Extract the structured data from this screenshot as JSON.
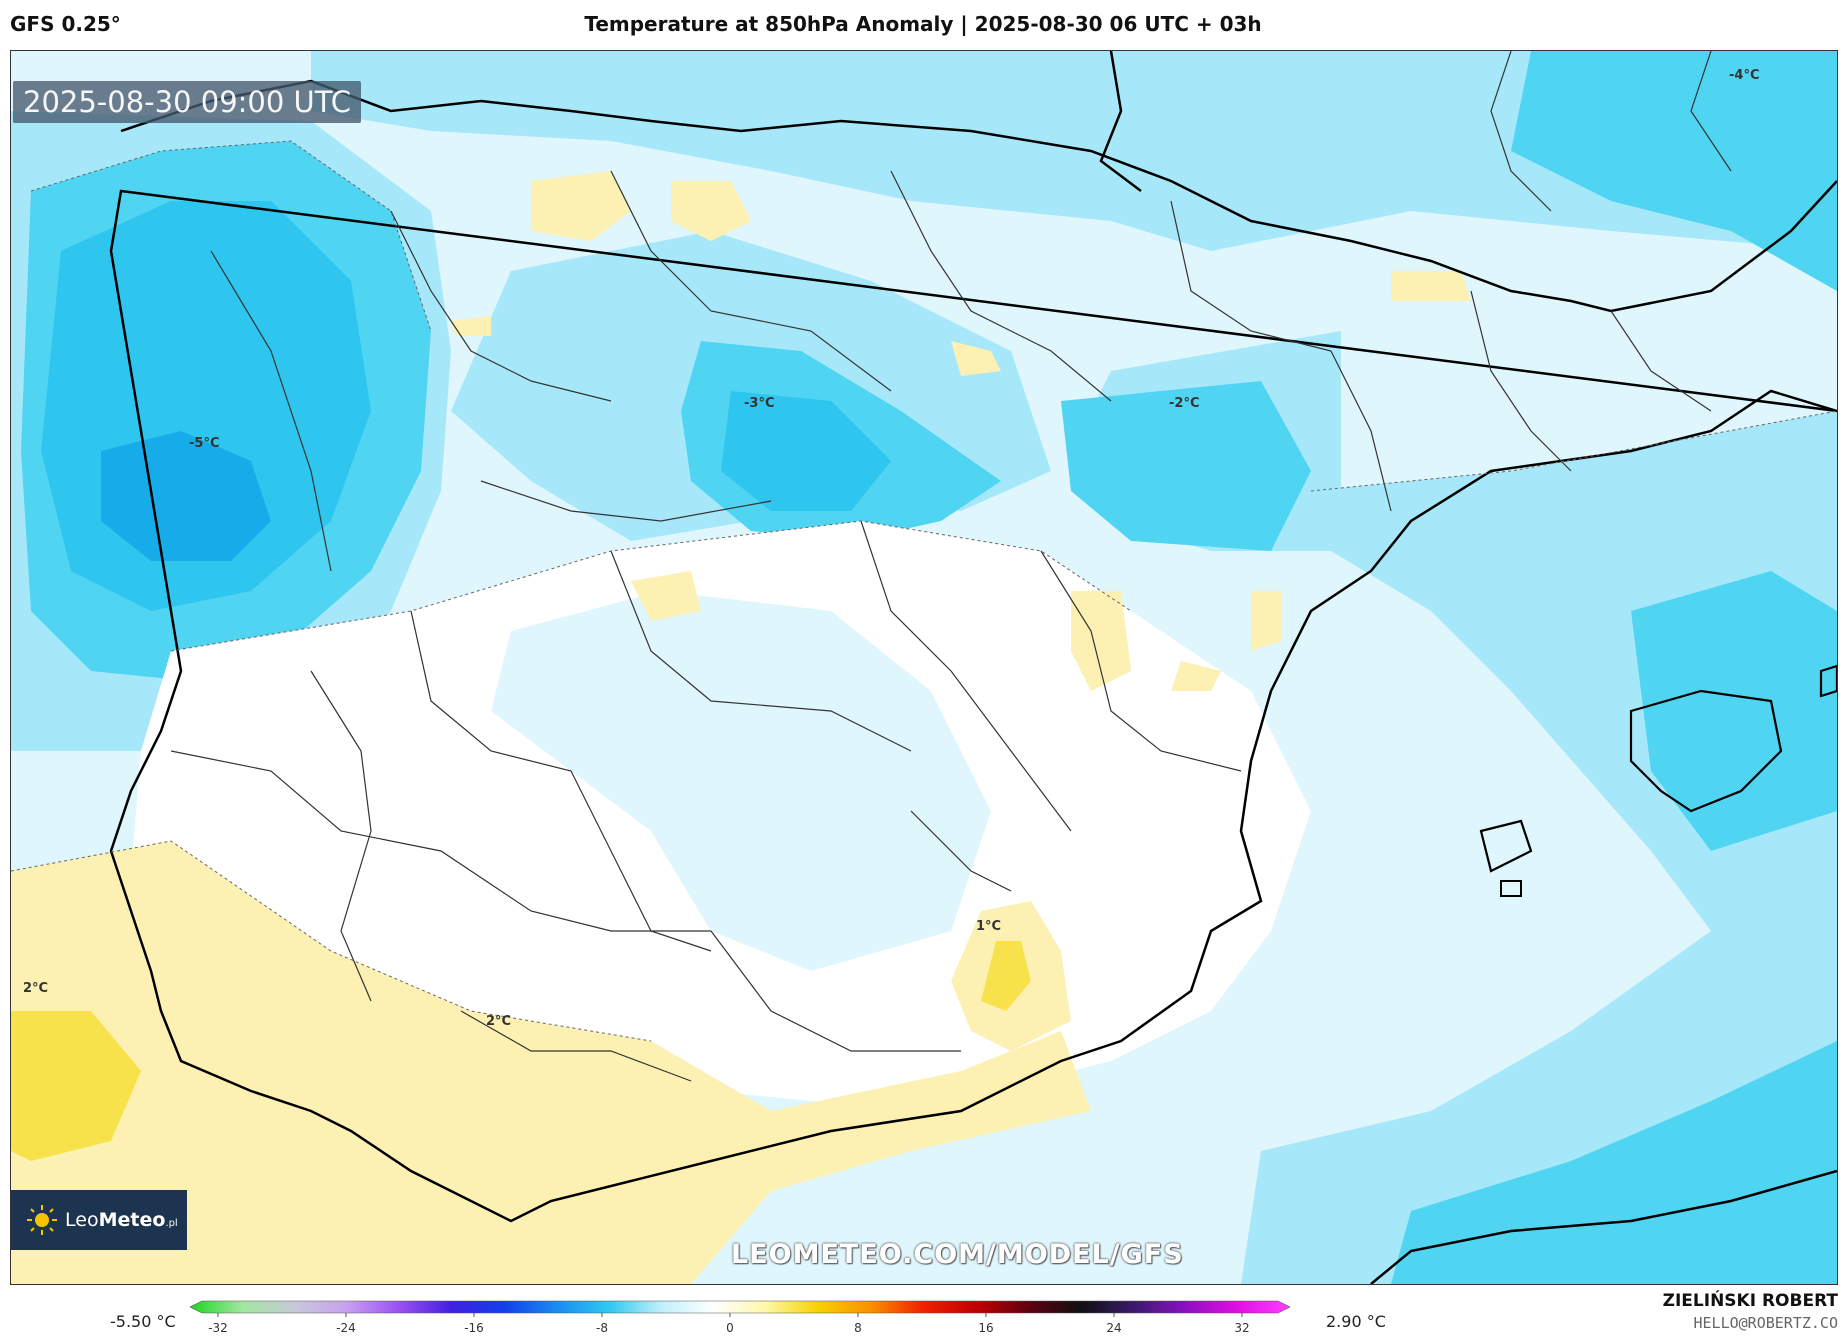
{
  "header": {
    "model": "GFS 0.25°",
    "title": "Temperature at 850hPa Anomaly | 2025-08-30 06 UTC + 03h"
  },
  "map": {
    "timestamp": "2025-08-30 09:00 UTC",
    "watermark": "LEOMETEO.COM/MODEL/GFS",
    "logo": {
      "prefix": "Leo",
      "brand": "Meteo",
      "suffix": ".pl"
    },
    "labels": [
      {
        "text": "-5°C"
      },
      {
        "text": "-3°C"
      },
      {
        "text": "-2°C"
      },
      {
        "text": "-4°C"
      },
      {
        "text": "1°C"
      },
      {
        "text": "2°C"
      },
      {
        "text": "2°C"
      }
    ],
    "fill_colors": {
      "sea_blue": "#4fd5f2",
      "blue_light": "#a6e8fa",
      "blue_pale": "#dff6fd",
      "blue_mid": "#2ec6ee",
      "blue_deep": "#16acea",
      "yellow_pale": "#fcf1b3",
      "yellow": "#f8e24c"
    }
  },
  "colorbar": {
    "min_label": "-5.50 °C",
    "max_label": "2.90 °C",
    "ticks": [
      "-32",
      "-24",
      "-16",
      "-8",
      "0",
      "8",
      "16",
      "24",
      "32"
    ],
    "gradient": [
      "#1fd41f",
      "#a0e8a0",
      "#c8c8d8",
      "#c8a0f0",
      "#9a50f0",
      "#4020e0",
      "#1040e8",
      "#1a8cf0",
      "#30c8f0",
      "#c0f0fc",
      "#ffffff",
      "#fff7a8",
      "#f8d000",
      "#f89000",
      "#f02000",
      "#c00000",
      "#600010",
      "#101010",
      "#3a1a6a",
      "#8a10c0",
      "#e010e0",
      "#ff40ff"
    ]
  },
  "footer": {
    "author": "ZIELIŃSKI ROBERT",
    "email": "HELLO@ROBERTZ.CO"
  }
}
